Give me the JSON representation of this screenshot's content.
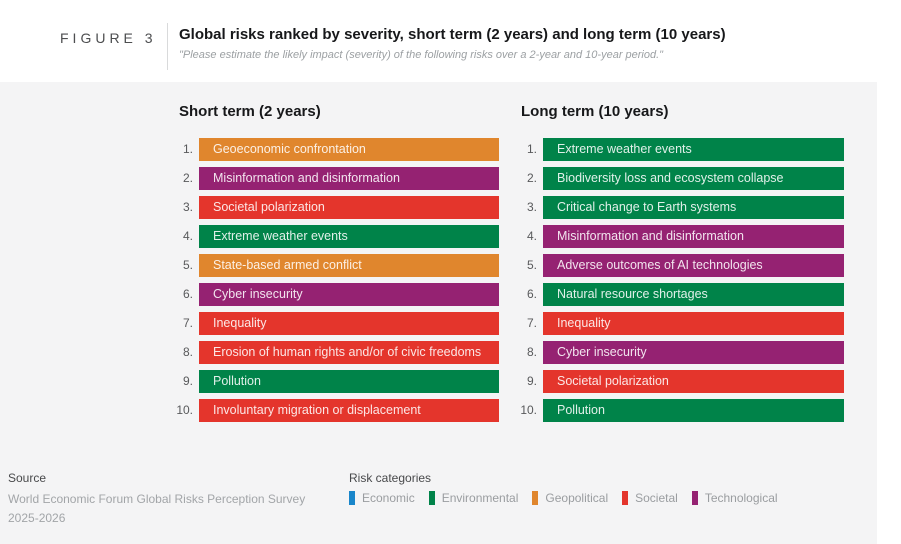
{
  "figure": {
    "label": "FIGURE 3",
    "title": "Global risks ranked by severity, short term (2 years) and long term (10 years)",
    "subtitle": "\"Please estimate the likely impact (severity) of the following risks over a 2-year and 10-year period.\""
  },
  "colors": {
    "economic": "#1986CA",
    "environmental": "#008349",
    "geopolitical": "#E0862D",
    "societal": "#E4352C",
    "technological": "#952272",
    "panel_background": "#f4f4f5"
  },
  "columns": [
    {
      "heading": "Short term (2 years)",
      "items": [
        {
          "rank": "1.",
          "label": "Geoeconomic confrontation",
          "category": "geopolitical"
        },
        {
          "rank": "2.",
          "label": "Misinformation and disinformation",
          "category": "technological"
        },
        {
          "rank": "3.",
          "label": "Societal polarization",
          "category": "societal"
        },
        {
          "rank": "4.",
          "label": "Extreme weather events",
          "category": "environmental"
        },
        {
          "rank": "5.",
          "label": "State-based armed conflict",
          "category": "geopolitical"
        },
        {
          "rank": "6.",
          "label": "Cyber insecurity",
          "category": "technological"
        },
        {
          "rank": "7.",
          "label": "Inequality",
          "category": "societal"
        },
        {
          "rank": "8.",
          "label": "Erosion of human rights and/or of civic freedoms",
          "category": "societal"
        },
        {
          "rank": "9.",
          "label": "Pollution",
          "category": "environmental"
        },
        {
          "rank": "10.",
          "label": "Involuntary migration or displacement",
          "category": "societal"
        }
      ]
    },
    {
      "heading": "Long term (10 years)",
      "items": [
        {
          "rank": "1.",
          "label": "Extreme weather events",
          "category": "environmental"
        },
        {
          "rank": "2.",
          "label": "Biodiversity loss and ecosystem collapse",
          "category": "environmental"
        },
        {
          "rank": "3.",
          "label": "Critical change to Earth systems",
          "category": "environmental"
        },
        {
          "rank": "4.",
          "label": "Misinformation and disinformation",
          "category": "technological"
        },
        {
          "rank": "5.",
          "label": "Adverse outcomes of AI technologies",
          "category": "technological"
        },
        {
          "rank": "6.",
          "label": "Natural resource shortages",
          "category": "environmental"
        },
        {
          "rank": "7.",
          "label": "Inequality",
          "category": "societal"
        },
        {
          "rank": "8.",
          "label": "Cyber insecurity",
          "category": "technological"
        },
        {
          "rank": "9.",
          "label": "Societal polarization",
          "category": "societal"
        },
        {
          "rank": "10.",
          "label": "Pollution",
          "category": "environmental"
        }
      ]
    }
  ],
  "footer": {
    "source_label": "Source",
    "source_line1": "World Economic Forum Global Risks Perception Survey",
    "source_line2": "2025-2026",
    "legend_title": "Risk categories",
    "legend": [
      {
        "label": "Economic",
        "category": "economic"
      },
      {
        "label": "Environmental",
        "category": "environmental"
      },
      {
        "label": "Geopolitical",
        "category": "geopolitical"
      },
      {
        "label": "Societal",
        "category": "societal"
      },
      {
        "label": "Technological",
        "category": "technological"
      }
    ]
  },
  "chart_data": {
    "type": "table",
    "title": "Global risks ranked by severity, short term (2 years) and long term (10 years)",
    "subtitle": "\"Please estimate the likely impact (severity) of the following risks over a 2-year and 10-year period.\"",
    "columns": [
      "Short term (2 years)",
      "Long term (10 years)"
    ],
    "short_term": [
      {
        "rank": 1,
        "risk": "Geoeconomic confrontation",
        "category": "Geopolitical"
      },
      {
        "rank": 2,
        "risk": "Misinformation and disinformation",
        "category": "Technological"
      },
      {
        "rank": 3,
        "risk": "Societal polarization",
        "category": "Societal"
      },
      {
        "rank": 4,
        "risk": "Extreme weather events",
        "category": "Environmental"
      },
      {
        "rank": 5,
        "risk": "State-based armed conflict",
        "category": "Geopolitical"
      },
      {
        "rank": 6,
        "risk": "Cyber insecurity",
        "category": "Technological"
      },
      {
        "rank": 7,
        "risk": "Inequality",
        "category": "Societal"
      },
      {
        "rank": 8,
        "risk": "Erosion of human rights and/or of civic freedoms",
        "category": "Societal"
      },
      {
        "rank": 9,
        "risk": "Pollution",
        "category": "Environmental"
      },
      {
        "rank": 10,
        "risk": "Involuntary migration or displacement",
        "category": "Societal"
      }
    ],
    "long_term": [
      {
        "rank": 1,
        "risk": "Extreme weather events",
        "category": "Environmental"
      },
      {
        "rank": 2,
        "risk": "Biodiversity loss and ecosystem collapse",
        "category": "Environmental"
      },
      {
        "rank": 3,
        "risk": "Critical change to Earth systems",
        "category": "Environmental"
      },
      {
        "rank": 4,
        "risk": "Misinformation and disinformation",
        "category": "Technological"
      },
      {
        "rank": 5,
        "risk": "Adverse outcomes of AI technologies",
        "category": "Technological"
      },
      {
        "rank": 6,
        "risk": "Natural resource shortages",
        "category": "Environmental"
      },
      {
        "rank": 7,
        "risk": "Inequality",
        "category": "Societal"
      },
      {
        "rank": 8,
        "risk": "Cyber insecurity",
        "category": "Technological"
      },
      {
        "rank": 9,
        "risk": "Societal polarization",
        "category": "Societal"
      },
      {
        "rank": 10,
        "risk": "Pollution",
        "category": "Environmental"
      }
    ],
    "legend": [
      "Economic",
      "Environmental",
      "Geopolitical",
      "Societal",
      "Technological"
    ],
    "legend_position": "bottom",
    "source": "World Economic Forum Global Risks Perception Survey 2025-2026"
  }
}
